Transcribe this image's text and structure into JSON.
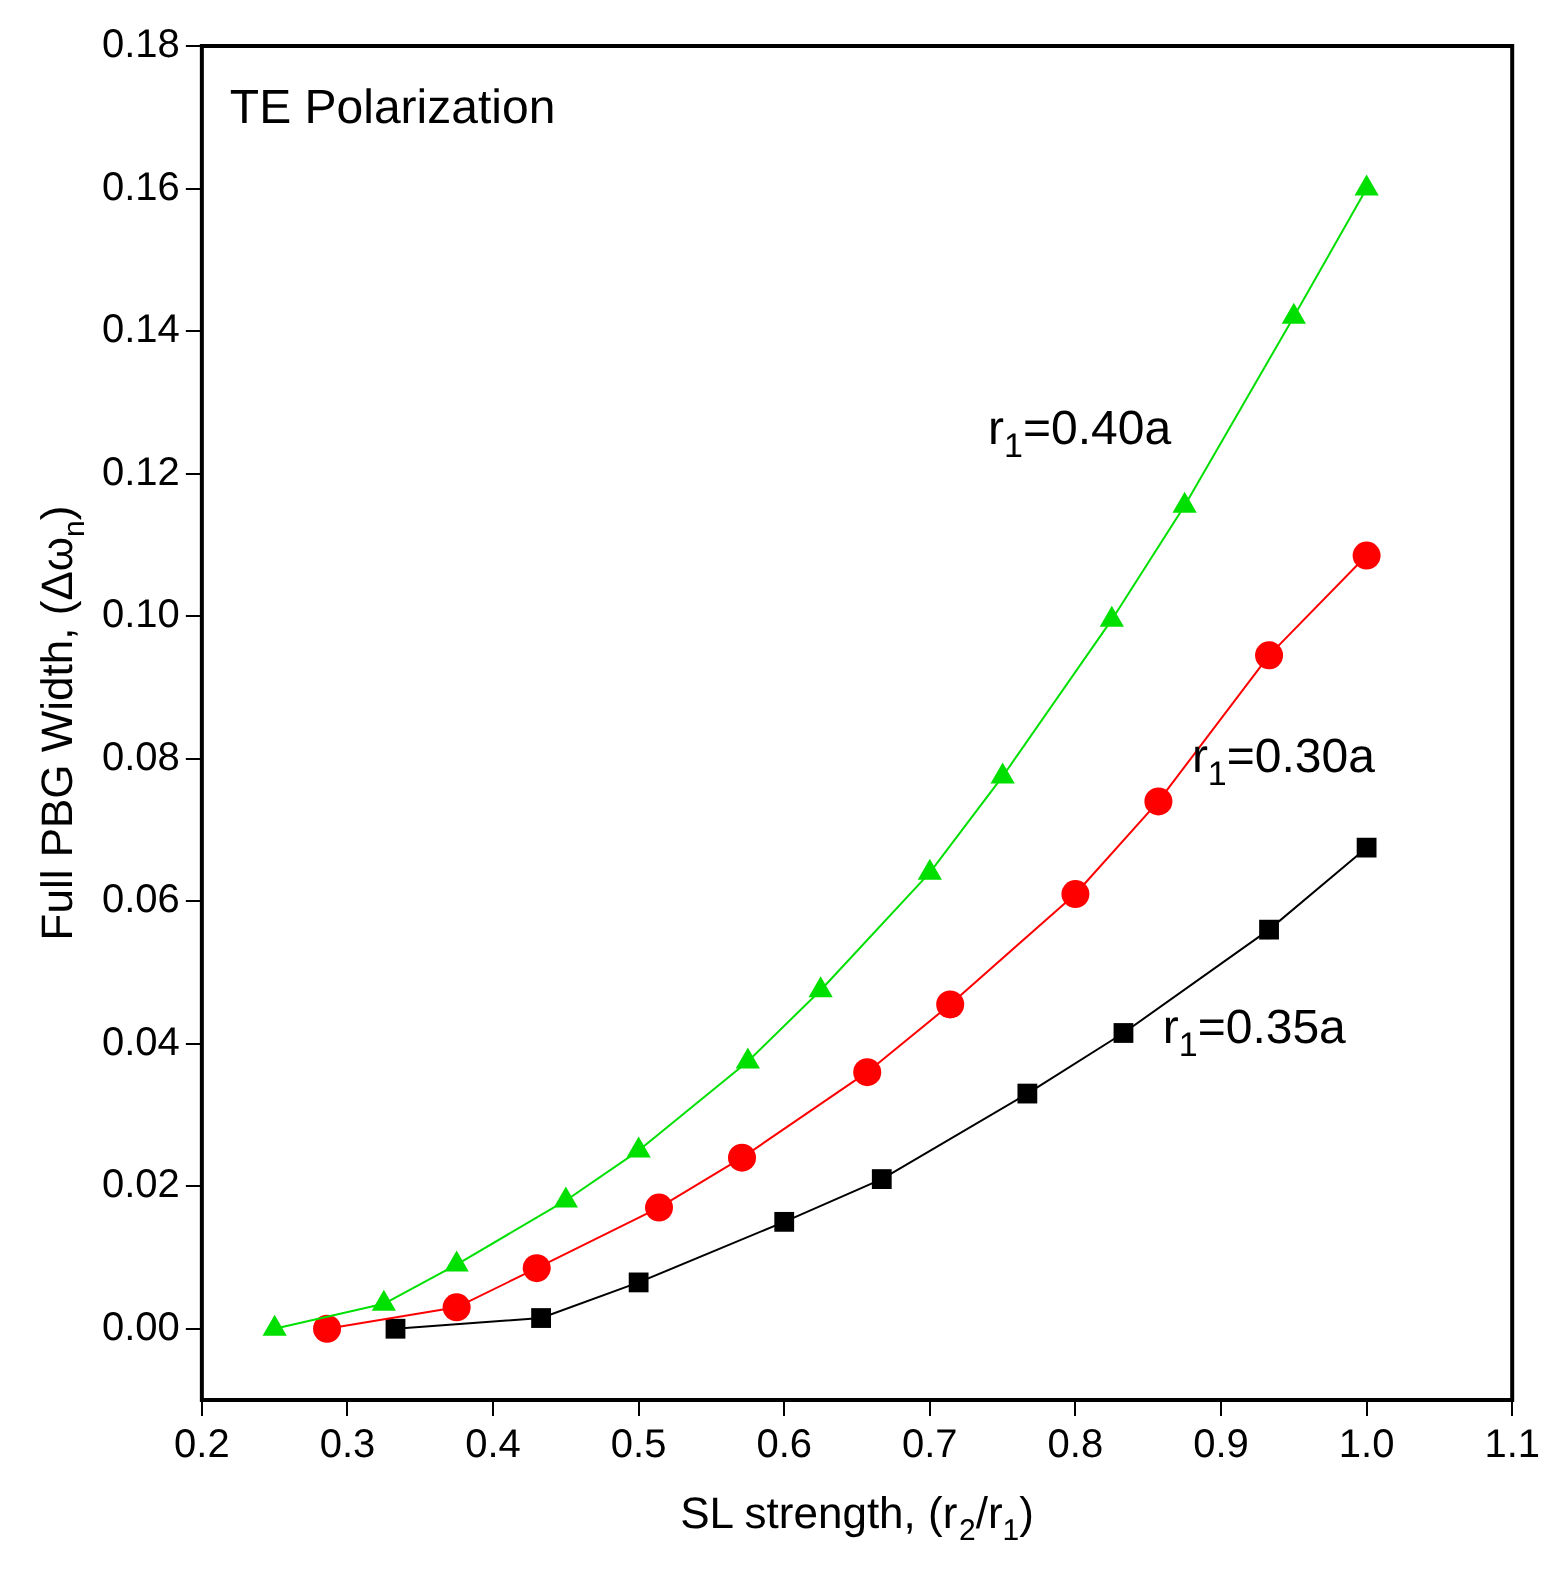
{
  "chart_data": {
    "type": "line",
    "xlabel": "SL strength, (r$_{2}$/r$_{1}$)",
    "ylabel": "Full PBG Width, (Δω$_{n}$)",
    "xlim": [
      0.2,
      1.1
    ],
    "ylim": [
      -0.01,
      0.18
    ],
    "xticks": [
      {
        "value": 0.2,
        "label": "0.2"
      },
      {
        "value": 0.3,
        "label": "0.3"
      },
      {
        "value": 0.4,
        "label": "0.4"
      },
      {
        "value": 0.5,
        "label": "0.5"
      },
      {
        "value": 0.6,
        "label": "0.6"
      },
      {
        "value": 0.7,
        "label": "0.7"
      },
      {
        "value": 0.8,
        "label": "0.8"
      },
      {
        "value": 0.9,
        "label": "0.9"
      },
      {
        "value": 1.0,
        "label": "1.0"
      },
      {
        "value": 1.1,
        "label": "1.1"
      }
    ],
    "yticks": [
      {
        "value": 0,
        "label": "0.00"
      },
      {
        "value": 0.02,
        "label": "0.02"
      },
      {
        "value": 0.04,
        "label": "0.04"
      },
      {
        "value": 0.06,
        "label": "0.06"
      },
      {
        "value": 0.08,
        "label": "0.08"
      },
      {
        "value": 0.1,
        "label": "0.10"
      },
      {
        "value": 0.12,
        "label": "0.12"
      },
      {
        "value": 0.14,
        "label": "0.14"
      },
      {
        "value": 0.16,
        "label": "0.16"
      },
      {
        "value": 0.18,
        "label": "0.18"
      }
    ],
    "grid": false,
    "legend": false,
    "line_style": "solid",
    "series": [
      {
        "name": "r$_{1}$=0.40a",
        "color": "#00e000",
        "marker": "triangle",
        "x": [
          0.25,
          0.325,
          0.375,
          0.45,
          0.5,
          0.575,
          0.625,
          0.7,
          0.75,
          0.825,
          0.875,
          0.95,
          1.0
        ],
        "values": [
          0,
          0.0035,
          0.009,
          0.018,
          0.025,
          0.0375,
          0.0475,
          0.064,
          0.0775,
          0.0995,
          0.1155,
          0.142,
          0.16
        ]
      },
      {
        "name": "r$_{1}$=0.30a",
        "color": "#ff0000",
        "marker": "circle",
        "x": [
          0.286,
          0.375,
          0.43,
          0.514,
          0.571,
          0.657,
          0.714,
          0.8,
          0.857,
          0.933,
          1.0
        ],
        "values": [
          0,
          0.003,
          0.0085,
          0.017,
          0.024,
          0.036,
          0.0455,
          0.061,
          0.074,
          0.0945,
          0.1085
        ]
      },
      {
        "name": "r$_{1}$=0.35a",
        "color": "#000000",
        "marker": "square",
        "x": [
          0.333,
          0.433,
          0.5,
          0.6,
          0.667,
          0.767,
          0.833,
          0.933,
          1.0
        ],
        "values": [
          0,
          0.0015,
          0.0065,
          0.015,
          0.021,
          0.033,
          0.0415,
          0.056,
          0.0675
        ]
      }
    ],
    "annotations": [
      "TE Polarization"
    ]
  }
}
